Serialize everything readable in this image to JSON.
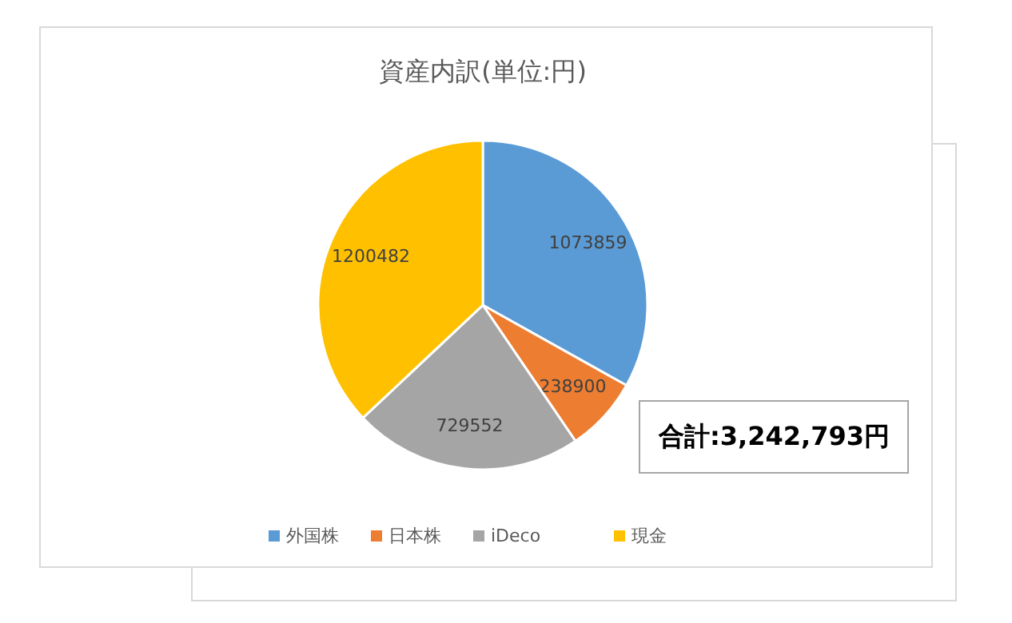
{
  "chart_data": {
    "type": "pie",
    "title": "資産内訳(単位:円)",
    "categories": [
      "外国株",
      "日本株",
      "iDeco",
      "現金"
    ],
    "values": [
      1073859,
      238900,
      729552,
      1200482
    ],
    "colors": [
      "#5b9bd5",
      "#ed7d31",
      "#a5a5a5",
      "#ffc000"
    ],
    "data_labels": true,
    "legend": "bottom",
    "annotations": [
      "合計:3,242,793円"
    ]
  }
}
